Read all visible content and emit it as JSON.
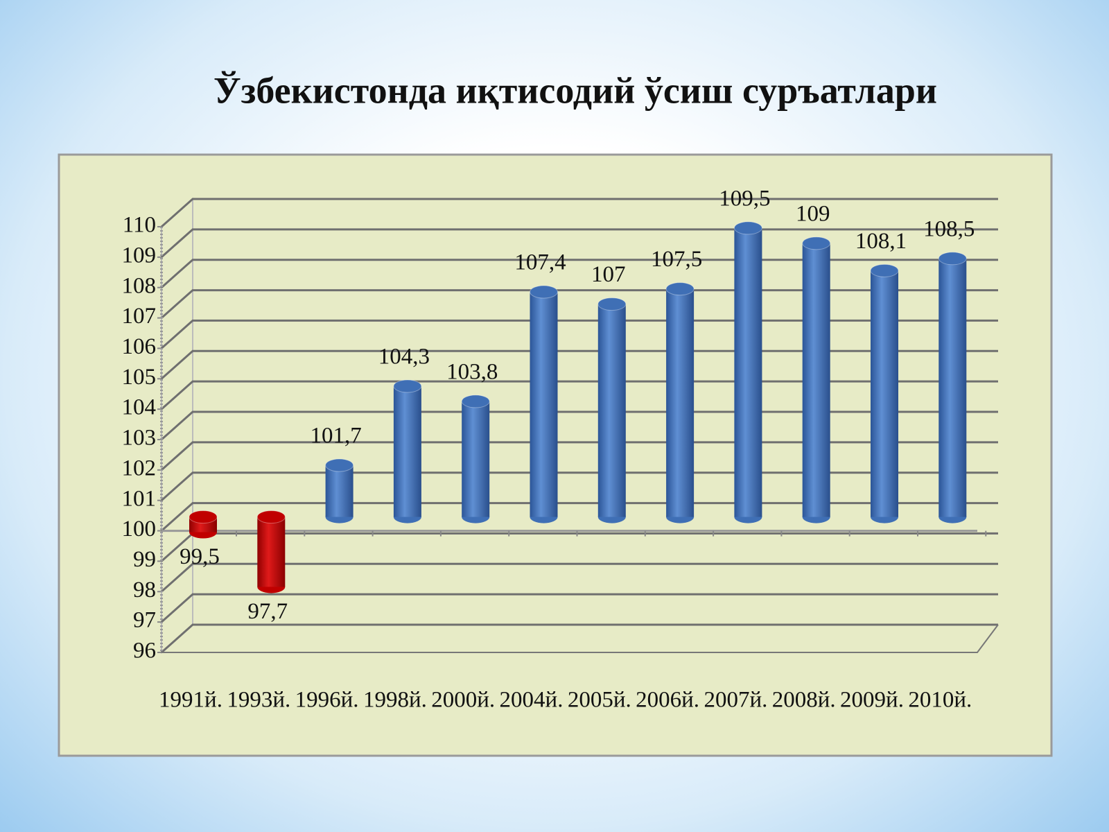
{
  "chart_data": {
    "type": "cylinder-bar",
    "title": "Ўзбекистонда иқтисодий ўсиш суръатлари",
    "categories": [
      "1991й.",
      "1993й.",
      "1996й.",
      "1998й.",
      "2000й.",
      "2004й.",
      "2005й.",
      "2006й.",
      "2007й.",
      "2008й.",
      "2009й.",
      "2010й."
    ],
    "values": [
      99.5,
      97.7,
      101.7,
      104.3,
      103.8,
      107.4,
      107,
      107.5,
      109.5,
      109,
      108.1,
      108.5
    ],
    "value_labels": [
      "99,5",
      "97,7",
      "101,7",
      "104,3",
      "103,8",
      "107,4",
      "107",
      "107,5",
      "109,5",
      "109",
      "108,1",
      "108,5"
    ],
    "colors": [
      "#c00000",
      "#c00000",
      "#3f6fb5",
      "#3f6fb5",
      "#3f6fb5",
      "#3f6fb5",
      "#3f6fb5",
      "#3f6fb5",
      "#3f6fb5",
      "#3f6fb5",
      "#3f6fb5",
      "#3f6fb5"
    ],
    "baseline": 100,
    "ylim": [
      96,
      110
    ],
    "yticks": [
      96,
      97,
      98,
      99,
      100,
      101,
      102,
      103,
      104,
      105,
      106,
      107,
      108,
      109,
      110
    ],
    "grid": true
  }
}
